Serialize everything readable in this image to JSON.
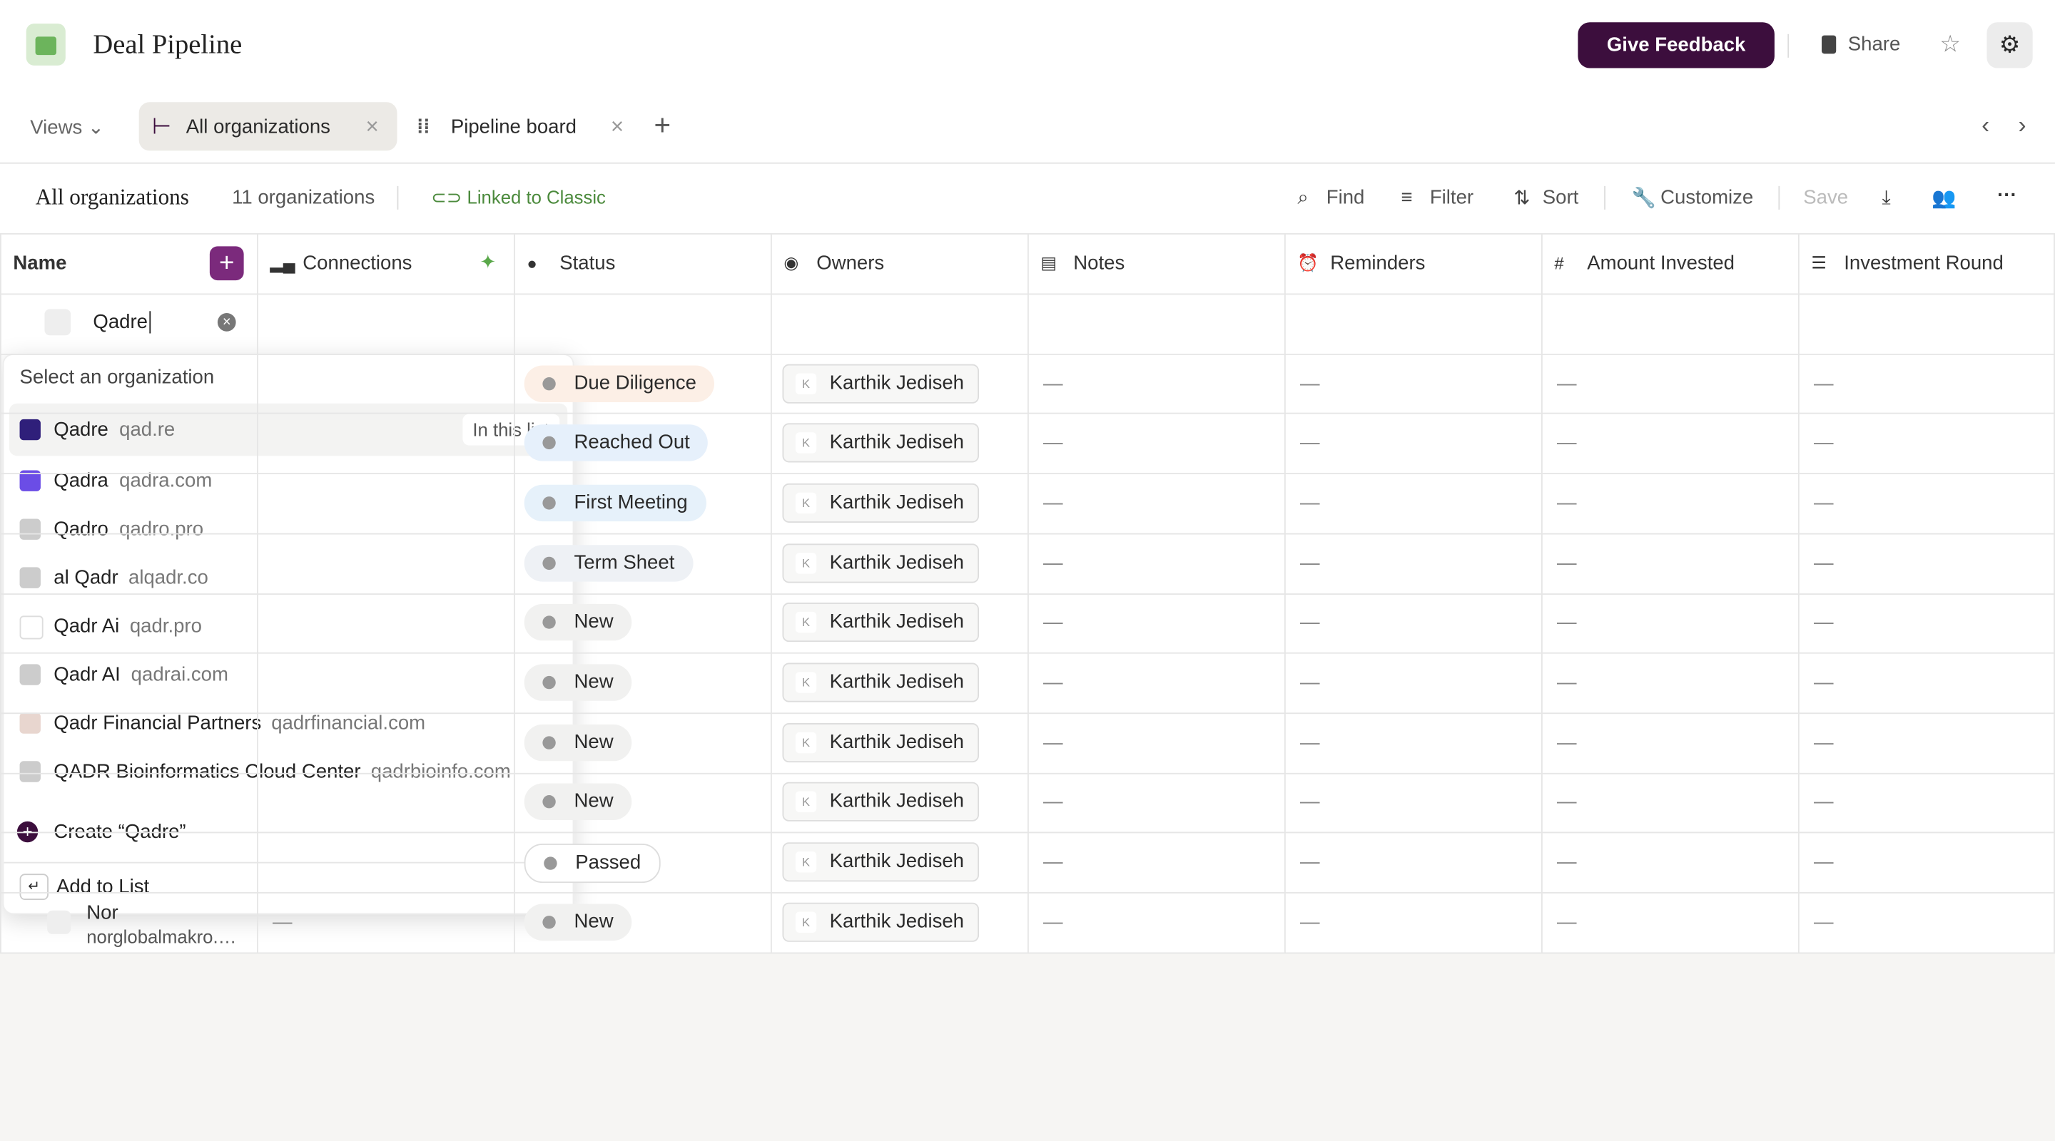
{
  "header": {
    "title": "Deal Pipeline",
    "feedback": "Give Feedback",
    "share": "Share"
  },
  "tabs": {
    "views": "Views",
    "items": [
      "All organizations",
      "Pipeline board"
    ]
  },
  "toolbar": {
    "title": "All organizations",
    "count": "11 organizations",
    "link": "Linked to Classic",
    "actions": [
      "Find",
      "Filter",
      "Sort",
      "Customize",
      "Save"
    ]
  },
  "table": {
    "columns": [
      "Name",
      "Connections",
      "Status",
      "Owners",
      "Notes",
      "Reminders",
      "Amount Invested",
      "Investment Round"
    ],
    "search": "Qadre",
    "empty": "—",
    "rows": [
      {
        "status": "Due Diligence",
        "color": "#fcefe6",
        "owner": "Karthik Jediseh"
      },
      {
        "status": "Reached Out",
        "color": "#e6f0fb",
        "owner": "Karthik Jediseh"
      },
      {
        "status": "First Meeting",
        "color": "#e6f1fa",
        "owner": "Karthik Jediseh"
      },
      {
        "status": "Term Sheet",
        "color": "#eef1f5",
        "owner": "Karthik Jediseh"
      },
      {
        "status": "New",
        "color": "#f1f1f0",
        "owner": "Karthik Jediseh"
      },
      {
        "status": "New",
        "color": "#f1f1f0",
        "owner": "Karthik Jediseh"
      },
      {
        "status": "New",
        "color": "#f1f1f0",
        "owner": "Karthik Jediseh"
      },
      {
        "status": "New",
        "color": "#f1f1f0",
        "owner": "Karthik Jediseh"
      },
      {
        "status": "Passed",
        "color": "#ffffff",
        "owner": "Karthik Jediseh"
      },
      {
        "status": "New",
        "color": "#f1f1f0",
        "owner": "Karthik Jediseh",
        "name": "Nor",
        "domain": "norglobalmakro.…"
      }
    ]
  },
  "dropdown": {
    "heading": "Select an organization",
    "items": [
      {
        "name": "Qadre",
        "domain": "qad.re",
        "badge": "In this list"
      },
      {
        "name": "Qadra",
        "domain": "qadra.com"
      },
      {
        "name": "Qadro",
        "domain": "qadro.pro"
      },
      {
        "name": "al Qadr",
        "domain": "alqadr.co"
      },
      {
        "name": "Qadr Ai",
        "domain": "qadr.pro"
      },
      {
        "name": "Qadr AI",
        "domain": "qadrai.com"
      },
      {
        "name": "Qadr Financial Partners",
        "domain": "qadrfinancial.com"
      },
      {
        "name": "QADR Bioinformatics Cloud Center",
        "domain": "qadrbioinfo.com"
      }
    ],
    "create": "Create “Qadre”",
    "add": "Add to List"
  }
}
